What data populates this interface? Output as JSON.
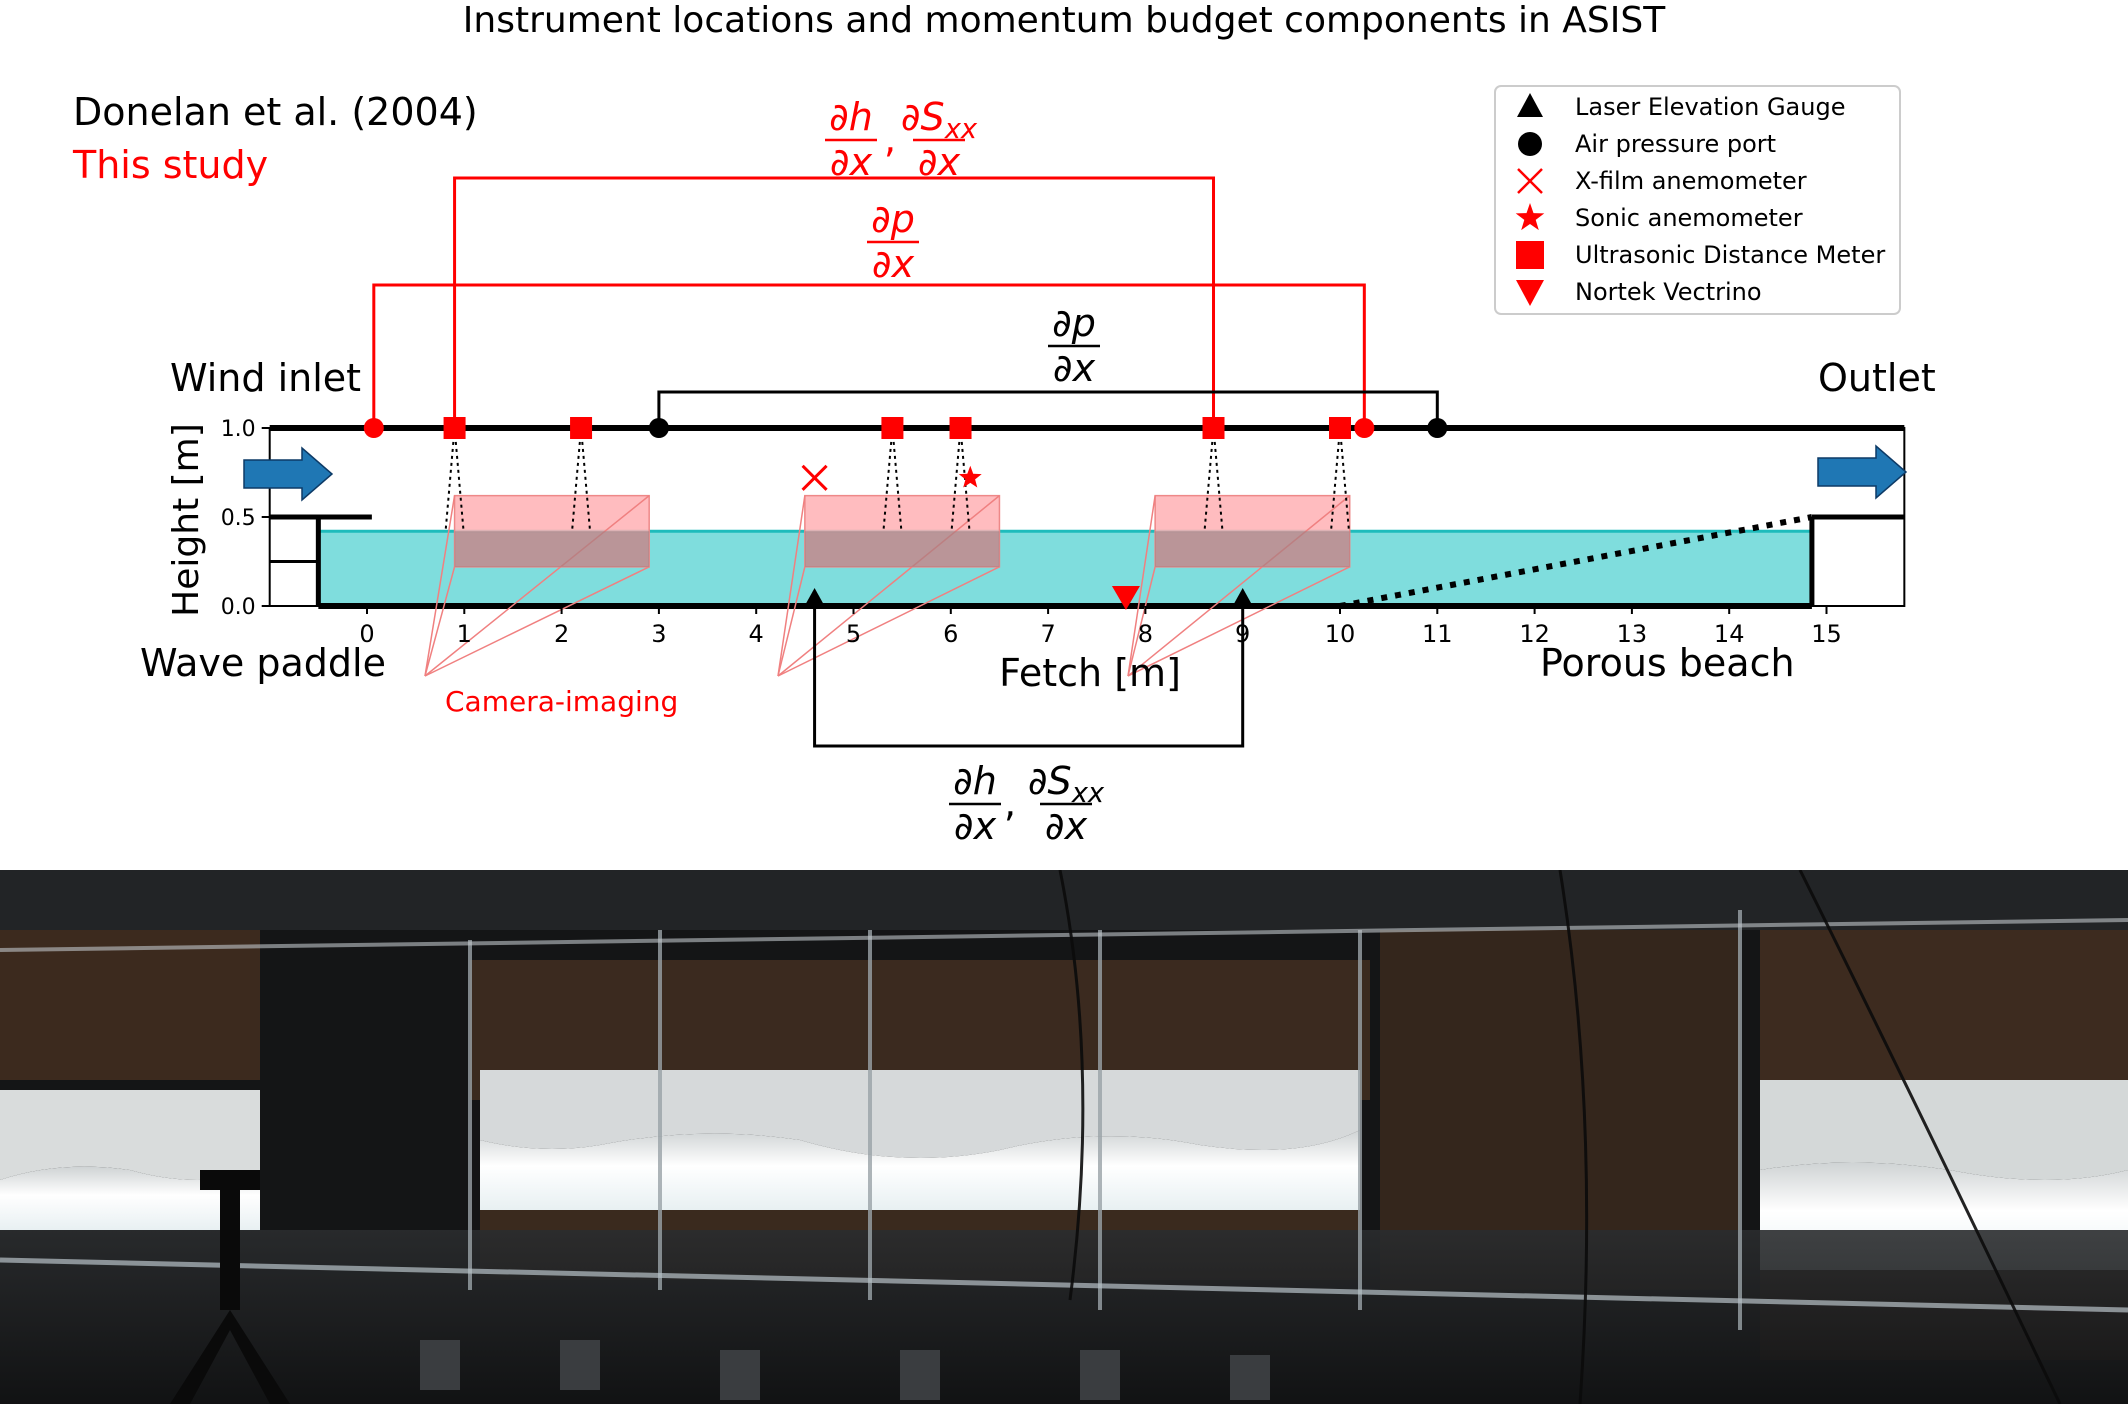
{
  "title": "Instrument locations and momentum budget components in ASIST",
  "sources": {
    "donelan": "Donelan et al. (2004)",
    "this_study": "This study"
  },
  "legend": [
    {
      "label": "Laser Elevation Gauge",
      "marker": "triangle-up",
      "color": "#000000"
    },
    {
      "label": "Air pressure port",
      "marker": "circle",
      "color": "#000000"
    },
    {
      "label": "X-film anemometer",
      "marker": "x",
      "color": "#ff0000"
    },
    {
      "label": "Sonic anemometer",
      "marker": "star",
      "color": "#ff0000"
    },
    {
      "label": "Ultrasonic Distance Meter",
      "marker": "square",
      "color": "#ff0000"
    },
    {
      "label": "Nortek Vectrino",
      "marker": "triangle-down",
      "color": "#ff0000"
    }
  ],
  "labels": {
    "wind_inlet": "Wind inlet",
    "outlet": "Outlet",
    "wave_paddle": "Wave paddle",
    "porous_beach": "Porous beach",
    "camera_imaging": "Camera-imaging",
    "xlabel": "Fetch [m]",
    "ylabel": "Height [m]"
  },
  "axes": {
    "xticks": [
      "0",
      "1",
      "2",
      "3",
      "4",
      "5",
      "6",
      "7",
      "8",
      "9",
      "10",
      "11",
      "12",
      "13",
      "14",
      "15"
    ],
    "yticks": [
      "0.0",
      "0.5",
      "1.0"
    ]
  },
  "annotations": {
    "red_dh_num": "∂h",
    "red_dh_den": "∂x",
    "red_dS_num": "∂S",
    "red_dS_sub": "xx",
    "red_dS_den": "∂x",
    "red_dp_num": "∂p",
    "red_dp_den": "∂x",
    "black_dp_num": "∂p",
    "black_dp_den": "∂x",
    "black_dh_num": "∂h",
    "black_dh_den": "∂x",
    "black_dS_num": "∂S",
    "black_dS_sub": "xx",
    "black_dS_den": "∂x",
    "comma": ","
  },
  "instruments": {
    "air_pressure_ports_donelan": [
      3.0,
      11.0
    ],
    "air_pressure_ports_this_study": [
      0.07,
      10.25
    ],
    "ultrasonic_distance_meters": [
      0.9,
      2.2,
      5.4,
      6.1,
      8.7,
      10.0
    ],
    "laser_elevation_gauges": [
      4.6,
      9.0
    ],
    "xfilm_anemometer": {
      "x": 4.6,
      "z": 0.72
    },
    "sonic_anemometer": {
      "x": 6.2,
      "z": 0.72
    },
    "nortek_vectrino": {
      "x": 7.8,
      "z": 0.0
    }
  },
  "colors": {
    "this_study": "#ff0000",
    "donelan": "#000000",
    "water": "#7fdddd",
    "waterline": "#1ebcbc",
    "camera_box": "#ffb0b4",
    "arrow": "#1f77b4"
  }
}
